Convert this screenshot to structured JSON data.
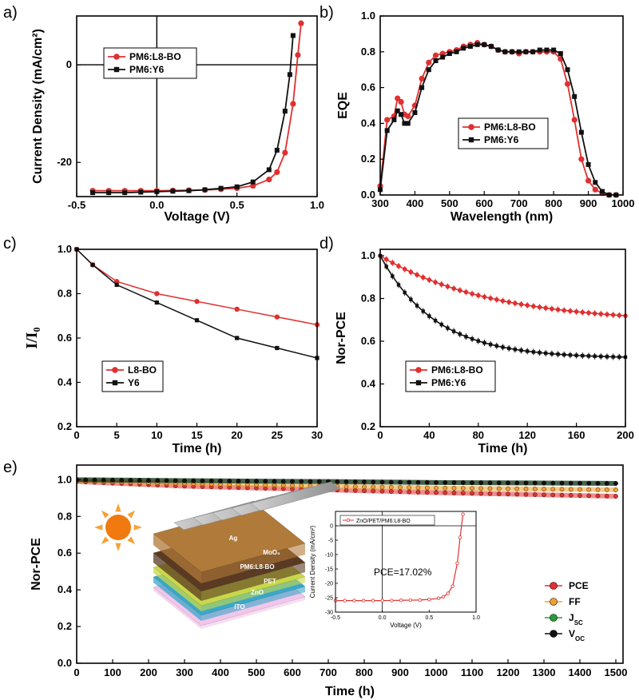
{
  "panels": {
    "a": "a)",
    "b": "b)",
    "c": "c)",
    "d": "d)",
    "e": "e)"
  },
  "colors": {
    "red": "#e03030",
    "black": "#111111",
    "orange": "#f0a030",
    "green": "#2a9a3a"
  },
  "chart_data": [
    {
      "id": "a",
      "type": "line",
      "xlabel": "Voltage (V)",
      "ylabel": "Current Density (mA/cm²)",
      "xlim": [
        -0.5,
        1.0
      ],
      "ylim": [
        -27,
        10
      ],
      "xticks": [
        "-0.5",
        "0.0",
        "0.5",
        "1.0"
      ],
      "yticks": [
        "-20",
        "0"
      ],
      "legend_position": "top-left",
      "series": [
        {
          "name": "PM6:L8-BO",
          "color": "red",
          "x": [
            -0.4,
            -0.3,
            -0.2,
            -0.1,
            0.0,
            0.1,
            0.2,
            0.3,
            0.4,
            0.5,
            0.6,
            0.7,
            0.75,
            0.8,
            0.85,
            0.88,
            0.9
          ],
          "y": [
            -25.8,
            -25.8,
            -25.8,
            -25.8,
            -25.8,
            -25.75,
            -25.7,
            -25.65,
            -25.5,
            -25.3,
            -24.8,
            -23.5,
            -22.0,
            -18.0,
            -8.0,
            2.0,
            8.5
          ]
        },
        {
          "name": "PM6:Y6",
          "color": "black",
          "x": [
            -0.4,
            -0.3,
            -0.2,
            -0.1,
            0.0,
            0.1,
            0.2,
            0.3,
            0.4,
            0.5,
            0.6,
            0.7,
            0.75,
            0.8,
            0.83,
            0.85
          ],
          "y": [
            -26.2,
            -26.2,
            -26.2,
            -26.1,
            -26.0,
            -25.9,
            -25.8,
            -25.6,
            -25.3,
            -25.0,
            -24.0,
            -21.5,
            -17.5,
            -9.5,
            -2.0,
            6.0
          ]
        }
      ]
    },
    {
      "id": "b",
      "type": "line",
      "xlabel": "Wavelength (nm)",
      "ylabel": "EQE",
      "xlim": [
        300,
        1000
      ],
      "ylim": [
        0.0,
        1.0
      ],
      "xticks": [
        "300",
        "400",
        "500",
        "600",
        "700",
        "800",
        "900",
        "1000"
      ],
      "yticks": [
        "0.0",
        "0.2",
        "0.4",
        "0.6",
        "0.8",
        "1.0"
      ],
      "legend_position": "center-right",
      "series": [
        {
          "name": "PM6:L8-BO",
          "color": "red",
          "x": [
            300,
            320,
            340,
            350,
            360,
            370,
            380,
            400,
            420,
            440,
            460,
            480,
            500,
            520,
            540,
            560,
            580,
            600,
            620,
            640,
            660,
            680,
            700,
            720,
            740,
            760,
            780,
            800,
            820,
            840,
            860,
            880,
            900,
            920,
            940,
            960,
            980
          ],
          "y": [
            0.05,
            0.42,
            0.44,
            0.54,
            0.52,
            0.45,
            0.44,
            0.5,
            0.65,
            0.74,
            0.78,
            0.79,
            0.8,
            0.81,
            0.83,
            0.84,
            0.85,
            0.84,
            0.83,
            0.81,
            0.8,
            0.8,
            0.79,
            0.8,
            0.8,
            0.8,
            0.8,
            0.8,
            0.76,
            0.62,
            0.42,
            0.2,
            0.08,
            0.03,
            0.01,
            0.0,
            0.0
          ]
        },
        {
          "name": "PM6:Y6",
          "color": "black",
          "x": [
            300,
            320,
            340,
            350,
            360,
            370,
            380,
            400,
            420,
            440,
            460,
            480,
            500,
            520,
            540,
            560,
            580,
            600,
            620,
            640,
            660,
            680,
            700,
            720,
            740,
            760,
            780,
            800,
            820,
            840,
            860,
            880,
            900,
            920,
            940,
            960,
            980
          ],
          "y": [
            0.03,
            0.36,
            0.42,
            0.47,
            0.45,
            0.4,
            0.4,
            0.46,
            0.6,
            0.7,
            0.75,
            0.77,
            0.79,
            0.8,
            0.82,
            0.83,
            0.84,
            0.84,
            0.83,
            0.81,
            0.8,
            0.8,
            0.8,
            0.8,
            0.8,
            0.81,
            0.81,
            0.81,
            0.79,
            0.7,
            0.55,
            0.35,
            0.17,
            0.07,
            0.02,
            0.0,
            0.0
          ]
        }
      ]
    },
    {
      "id": "c",
      "type": "line",
      "xlabel": "Time (h)",
      "ylabel": "I/I₀",
      "xlim": [
        0,
        30
      ],
      "ylim": [
        0.2,
        1.0
      ],
      "xticks": [
        "0",
        "5",
        "10",
        "15",
        "20",
        "25",
        "30"
      ],
      "yticks": [
        "0.2",
        "0.4",
        "0.6",
        "0.8",
        "1.0"
      ],
      "legend_position": "bottom-left",
      "series": [
        {
          "name": "L8-BO",
          "color": "red",
          "x": [
            0,
            2,
            5,
            10,
            15,
            20,
            25,
            30
          ],
          "y": [
            1.0,
            0.93,
            0.855,
            0.8,
            0.765,
            0.73,
            0.695,
            0.66
          ]
        },
        {
          "name": "Y6",
          "color": "black",
          "x": [
            0,
            2,
            5,
            10,
            15,
            20,
            25,
            30
          ],
          "y": [
            1.0,
            0.93,
            0.84,
            0.76,
            0.68,
            0.6,
            0.555,
            0.51
          ]
        }
      ]
    },
    {
      "id": "d",
      "type": "line",
      "xlabel": "Time (h)",
      "ylabel": "Nor-PCE",
      "xlim": [
        0,
        200
      ],
      "ylim": [
        0.2,
        1.03
      ],
      "xticks": [
        "0",
        "40",
        "80",
        "120",
        "160",
        "200"
      ],
      "yticks": [
        "0.2",
        "0.4",
        "0.6",
        "0.8",
        "1.0"
      ],
      "legend_position": "bottom-left",
      "series": [
        {
          "name": "PM6:L8-BO",
          "color": "red",
          "decay": [
            0.315,
            90
          ],
          "points": 40
        },
        {
          "name": "PM6:Y6",
          "color": "black",
          "decay": [
            0.48,
            45
          ],
          "points": 40
        }
      ]
    },
    {
      "id": "e",
      "type": "line",
      "xlabel": "Time (h)",
      "ylabel": "Nor-PCE",
      "xlim": [
        0,
        1520
      ],
      "ylim": [
        0.0,
        1.08
      ],
      "xticks": [
        "0",
        "100",
        "200",
        "300",
        "400",
        "500",
        "600",
        "700",
        "800",
        "900",
        "1000",
        "1100",
        "1200",
        "1300",
        "1400",
        "1500"
      ],
      "yticks": [
        "0.0",
        "0.2",
        "0.4",
        "0.6",
        "0.8",
        "1.0"
      ],
      "legend_position": "right",
      "series": [
        {
          "name": "PCE",
          "color": "red",
          "x": [
            0,
            300,
            700,
            1000,
            1500
          ],
          "y": [
            0.99,
            0.965,
            0.945,
            0.93,
            0.91
          ]
        },
        {
          "name": "FF",
          "color": "orange",
          "x": [
            0,
            300,
            700,
            1000,
            1500
          ],
          "y": [
            0.995,
            0.98,
            0.965,
            0.955,
            0.945
          ]
        },
        {
          "name": "Jsc",
          "color": "green",
          "x": [
            0,
            300,
            700,
            1000,
            1500
          ],
          "y": [
            1.0,
            0.995,
            0.99,
            0.985,
            0.98
          ]
        },
        {
          "name": "Voc",
          "color": "black",
          "x": [
            0,
            300,
            700,
            1000,
            1500
          ],
          "y": [
            1.0,
            0.995,
            0.99,
            0.985,
            0.98
          ]
        }
      ],
      "legend_labels": [
        "PCE",
        "FF",
        "J",
        "V"
      ],
      "legend_subs": [
        "",
        "",
        "SC",
        "OC"
      ],
      "device_layers": [
        "Ag",
        "MoO₃",
        "PM6:L8-BO",
        "PET",
        "ZnO",
        "ITO"
      ],
      "inset": {
        "type": "line",
        "xlabel": "Voltage (V)",
        "ylabel": "Current Density (mA/cm²)",
        "xlim": [
          -0.5,
          1.0
        ],
        "ylim": [
          -30,
          5
        ],
        "xticks": [
          "-0.5",
          "0.0",
          "0.5",
          "1.0"
        ],
        "yticks": [
          "-30",
          "-25",
          "-20",
          "-15",
          "-10",
          "-5",
          "0"
        ],
        "annotation": "PCE=17.02%",
        "series": [
          {
            "name": "ZnO/PET/PM6:L8-BO",
            "color": "red",
            "x": [
              -0.5,
              -0.4,
              -0.3,
              -0.2,
              -0.1,
              0.0,
              0.1,
              0.2,
              0.3,
              0.4,
              0.5,
              0.6,
              0.65,
              0.7,
              0.75,
              0.8,
              0.83,
              0.86
            ],
            "y": [
              -26.0,
              -26.0,
              -26.0,
              -26.0,
              -26.0,
              -26.0,
              -25.95,
              -25.9,
              -25.85,
              -25.8,
              -25.6,
              -25.2,
              -24.7,
              -23.5,
              -21.0,
              -13.0,
              -4.0,
              4.0
            ]
          }
        ]
      }
    }
  ]
}
